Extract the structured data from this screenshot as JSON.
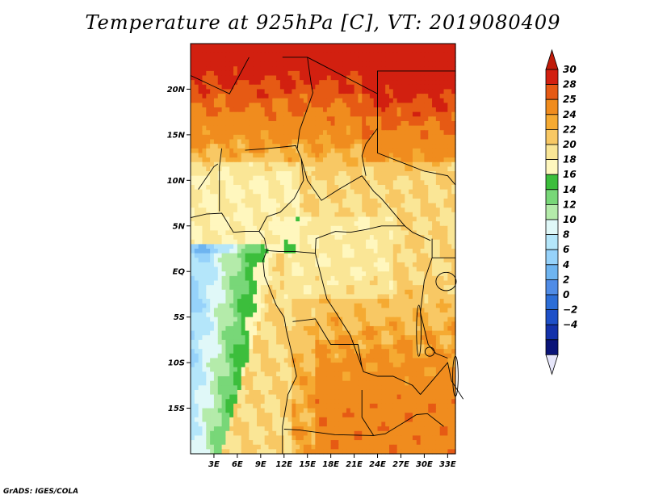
{
  "title": "Temperature at 925hPa [C], VT: 2019080409",
  "credit": "GrADS: IGES/COLA",
  "map": {
    "lon_range": [
      0,
      34
    ],
    "lat_range": [
      -20,
      25
    ],
    "lat_ticks": [
      {
        "lat": 20,
        "label": "20N"
      },
      {
        "lat": 15,
        "label": "15N"
      },
      {
        "lat": 10,
        "label": "10N"
      },
      {
        "lat": 5,
        "label": "5N"
      },
      {
        "lat": 0,
        "label": "EQ"
      },
      {
        "lat": -5,
        "label": "5S"
      },
      {
        "lat": -10,
        "label": "10S"
      },
      {
        "lat": -15,
        "label": "15S"
      }
    ],
    "lon_ticks": [
      {
        "lon": 3,
        "label": "3E"
      },
      {
        "lon": 6,
        "label": "6E"
      },
      {
        "lon": 9,
        "label": "9E"
      },
      {
        "lon": 12,
        "label": "12E"
      },
      {
        "lon": 15,
        "label": "15E"
      },
      {
        "lon": 18,
        "label": "18E"
      },
      {
        "lon": 21,
        "label": "21E"
      },
      {
        "lon": 24,
        "label": "24E"
      },
      {
        "lon": 27,
        "label": "27E"
      },
      {
        "lon": 30,
        "label": "30E"
      },
      {
        "lon": 33,
        "label": "33E"
      }
    ]
  },
  "colorbar": {
    "labels": [
      "30",
      "28",
      "25",
      "24",
      "22",
      "20",
      "18",
      "16",
      "14",
      "12",
      "10",
      "8",
      "6",
      "4",
      "2",
      "0",
      "−2",
      "−4"
    ],
    "colors": [
      "#d22010",
      "#e65a14",
      "#f08c1e",
      "#f5aa32",
      "#f8c864",
      "#fae696",
      "#fff7be",
      "#3cbe3c",
      "#78d778",
      "#b4ebaa",
      "#e0f8f8",
      "#b4e6fa",
      "#96d2fa",
      "#6eb4f0",
      "#508ce6",
      "#2d6ed7",
      "#1e50c8",
      "#1432aa",
      "#0a1478"
    ],
    "top_arrow_color": "#c01b0a",
    "bottom_arrow_color": "#e6e6fa"
  }
}
